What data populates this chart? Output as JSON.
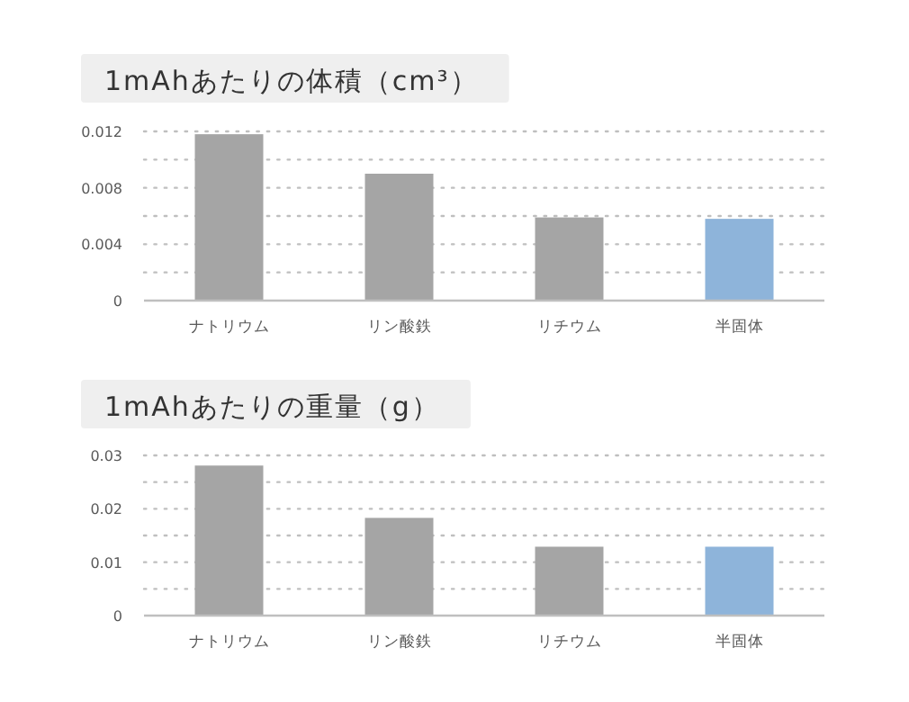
{
  "chart_data": [
    {
      "type": "bar",
      "title": "1mAhあたりの体積（cm³）",
      "categories": [
        "ナトリウム",
        "リン酸鉄",
        "リチウム",
        "半固体"
      ],
      "values": [
        0.0118,
        0.009,
        0.0059,
        0.0058
      ],
      "colors": [
        "#a5a5a5",
        "#a5a5a5",
        "#a5a5a5",
        "#8eb4da"
      ],
      "ylim": [
        0,
        0.012
      ],
      "yticks": [
        0,
        {
          "value": 0.002,
          "label": null
        },
        0.004,
        {
          "value": 0.006,
          "label": null
        },
        0.008,
        {
          "value": 0.01,
          "label": null
        },
        0.012
      ],
      "grid": "y"
    },
    {
      "type": "bar",
      "title": "1mAhあたりの重量（g）",
      "categories": [
        "ナトリウム",
        "リン酸鉄",
        "リチウム",
        "半固体"
      ],
      "values": [
        0.0281,
        0.0183,
        0.0129,
        0.0129
      ],
      "colors": [
        "#a5a5a5",
        "#a5a5a5",
        "#a5a5a5",
        "#8eb4da"
      ],
      "ylim": [
        0,
        0.03
      ],
      "yticks": [
        0,
        {
          "value": 0.005,
          "label": null
        },
        0.01,
        {
          "value": 0.015,
          "label": null
        },
        0.02,
        {
          "value": 0.025,
          "label": null
        },
        0.03
      ],
      "grid": "y"
    }
  ]
}
